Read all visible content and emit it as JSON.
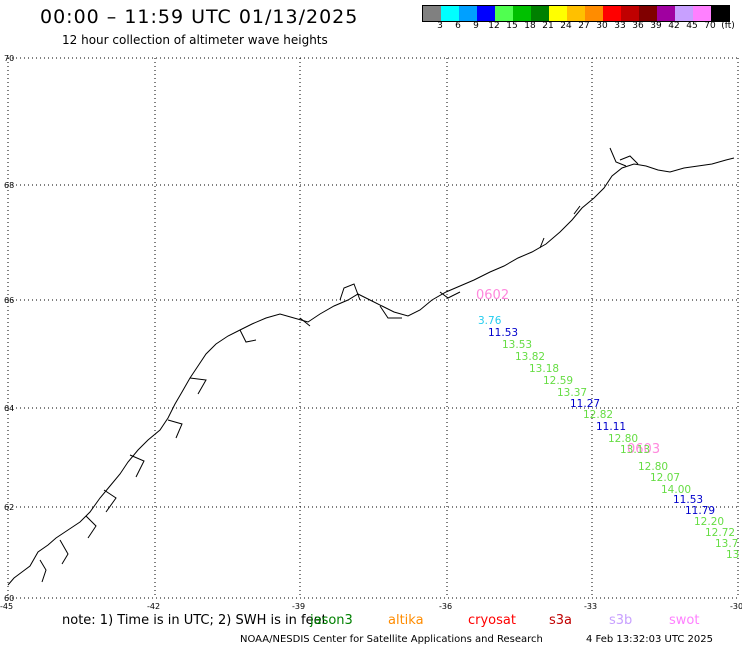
{
  "header": {
    "title": "00:00 – 11:59 UTC 01/13/2025",
    "subtitle": "12 hour collection of altimeter wave heights"
  },
  "colorbar": {
    "colors": [
      "#808080",
      "#00ffff",
      "#00a0ff",
      "#0000ff",
      "#50ff50",
      "#00c000",
      "#008000",
      "#ffff00",
      "#ffc000",
      "#ff8c00",
      "#ff0000",
      "#c00000",
      "#800000",
      "#a000a0",
      "#c8a0ff",
      "#ff80ff",
      "#000000"
    ],
    "labels": [
      "3",
      "6",
      "9",
      "12",
      "15",
      "18",
      "21",
      "24",
      "27",
      "30",
      "33",
      "36",
      "39",
      "42",
      "45",
      "70",
      "(ft)"
    ]
  },
  "axes": {
    "lat_labels": [
      "70",
      "68",
      "66",
      "64",
      "62",
      "60"
    ],
    "lon_labels": [
      "-45",
      "-42",
      "-39",
      "-36",
      "-33",
      "-30"
    ]
  },
  "passes": [
    {
      "label": "0602",
      "color": "#ff88dd"
    },
    {
      "label": "0603",
      "color": "#ff88dd"
    }
  ],
  "wave_values": [
    {
      "text": "3.76",
      "color": "#22ccee"
    },
    {
      "text": "11.53",
      "color": "#0000cc"
    },
    {
      "text": "13.53",
      "color": "#66dd44"
    },
    {
      "text": "13.82",
      "color": "#66dd44"
    },
    {
      "text": "13.18",
      "color": "#66dd44"
    },
    {
      "text": "12.59",
      "color": "#66dd44"
    },
    {
      "text": "13.37",
      "color": "#66dd44"
    },
    {
      "text": "11.27",
      "color": "#0000cc"
    },
    {
      "text": "12.82",
      "color": "#66dd44"
    },
    {
      "text": "11.11",
      "color": "#0000cc"
    },
    {
      "text": "12.80",
      "color": "#66dd44"
    },
    {
      "text": "13.13",
      "color": "#66dd44"
    },
    {
      "text": "12.80",
      "color": "#66dd44"
    },
    {
      "text": "12.07",
      "color": "#66dd44"
    },
    {
      "text": "14.00",
      "color": "#66dd44"
    },
    {
      "text": "11.53",
      "color": "#0000cc"
    },
    {
      "text": "11.79",
      "color": "#0000cc"
    },
    {
      "text": "12.20",
      "color": "#66dd44"
    },
    {
      "text": "12.72",
      "color": "#66dd44"
    },
    {
      "text": "13.7",
      "color": "#66dd44"
    },
    {
      "text": "13",
      "color": "#66dd44"
    }
  ],
  "note": {
    "prefix": "note:  1) Time is in UTC; 2) SWH is in feet",
    "satellites": [
      {
        "name": "jason3",
        "color": "#008000"
      },
      {
        "name": "altika",
        "color": "#ff8c00"
      },
      {
        "name": "cryosat",
        "color": "#ff0000"
      },
      {
        "name": "s3a",
        "color": "#c00000"
      },
      {
        "name": "s3b",
        "color": "#c8a0ff"
      },
      {
        "name": "swot",
        "color": "#ff80ff"
      }
    ]
  },
  "footer": {
    "credit": "NOAA/NESDIS Center for Satellite Applications and Research",
    "timestamp": "4 Feb 13:32:03 UTC 2025"
  }
}
